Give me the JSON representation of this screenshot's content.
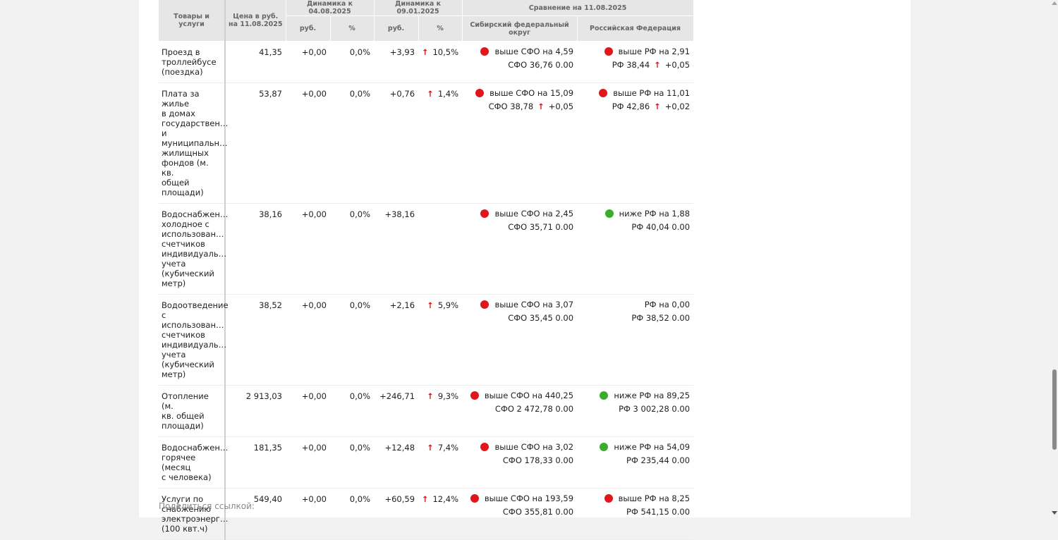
{
  "table": {
    "headers": {
      "goods": "Товары и услуги",
      "price": "Цена в руб. на 11.08.2025",
      "dyn1": "Динамика к 04.08.2025",
      "dyn2": "Динамика к 09.01.2025",
      "comparison": "Сравнение на 11.08.2025",
      "rub": "руб.",
      "pct": "%",
      "sfo": "Сибирский федеральный округ",
      "rf": "Российская Федерация"
    },
    "rows": [
      {
        "name": [
          "Проезд в",
          "троллейбусе",
          "(поездка)"
        ],
        "price": "41,35",
        "d1_rub": "+0,00",
        "d1_pct": "0,0%",
        "d2_rub": "+3,93",
        "d2_arrow": "↑",
        "d2_pct": "10,5%",
        "sfo_status": "red",
        "sfo_line1": "выше СФО на 4,59",
        "sfo_line2": "СФО 36,76 0.00",
        "rf_status": "red",
        "rf_line1": "выше РФ на 2,91",
        "rf_line2_main": "РФ 38,44",
        "rf_line2_arrow": "↑",
        "rf_line2_delta": "+0,05",
        "sfo_line2_main": "",
        "sfo_line2_arrow": "",
        "sfo_line2_delta": ""
      },
      {
        "name": [
          "Плата за жилье",
          "в домах",
          "государствен…",
          "и",
          "муниципальн…",
          "жилищных",
          "фондов (м. кв.",
          "общей",
          "площади)"
        ],
        "price": "53,87",
        "d1_rub": "+0,00",
        "d1_pct": "0,0%",
        "d2_rub": "+0,76",
        "d2_arrow": "↑",
        "d2_pct": "1,4%",
        "sfo_status": "red",
        "sfo_line1": "выше СФО на 15,09",
        "sfo_line2_main": "СФО 38,78",
        "sfo_line2_arrow": "↑",
        "sfo_line2_delta": "+0,05",
        "rf_status": "red",
        "rf_line1": "выше РФ на 11,01",
        "rf_line2_main": "РФ 42,86",
        "rf_line2_arrow": "↑",
        "rf_line2_delta": "+0,02"
      },
      {
        "name": [
          "Водоснабжен…",
          "холодное с",
          "использован…",
          "счетчиков",
          "индивидуаль…",
          "учета",
          "(кубический",
          "метр)"
        ],
        "price": "38,16",
        "d1_rub": "+0,00",
        "d1_pct": "0,0%",
        "d2_rub": "+38,16",
        "d2_arrow": "",
        "d2_pct": "",
        "sfo_status": "red",
        "sfo_line1": "выше СФО на 2,45",
        "sfo_line2": "СФО 35,71 0.00",
        "rf_status": "green",
        "rf_line1": "ниже РФ на 1,88",
        "rf_line2_main": "РФ 40,04 0.00",
        "rf_line2_arrow": "",
        "rf_line2_delta": ""
      },
      {
        "name": [
          "Водоотведение",
          "с",
          "использован…",
          "счетчиков",
          "индивидуаль…",
          "учета",
          "(кубический",
          "метр)"
        ],
        "price": "38,52",
        "d1_rub": "+0,00",
        "d1_pct": "0,0%",
        "d2_rub": "+2,16",
        "d2_arrow": "↑",
        "d2_pct": "5,9%",
        "sfo_status": "red",
        "sfo_line1": "выше СФО на 3,07",
        "sfo_line2": "СФО 35,45 0.00",
        "rf_status": "none",
        "rf_line1": "РФ на 0,00",
        "rf_line2_main": "РФ 38,52 0.00",
        "rf_line2_arrow": "",
        "rf_line2_delta": ""
      },
      {
        "name": [
          "Отопление (м.",
          "кв. общей",
          "площади)"
        ],
        "price": "2 913,03",
        "d1_rub": "+0,00",
        "d1_pct": "0,0%",
        "d2_rub": "+246,71",
        "d2_arrow": "↑",
        "d2_pct": "9,3%",
        "sfo_status": "red",
        "sfo_line1": "выше СФО на 440,25",
        "sfo_line2": "СФО 2 472,78 0.00",
        "rf_status": "green",
        "rf_line1": "ниже РФ на 89,25",
        "rf_line2_main": "РФ 3 002,28 0.00",
        "rf_line2_arrow": "",
        "rf_line2_delta": ""
      },
      {
        "name": [
          "Водоснабжен…",
          "горячее (месяц",
          "с человека)"
        ],
        "price": "181,35",
        "d1_rub": "+0,00",
        "d1_pct": "0,0%",
        "d2_rub": "+12,48",
        "d2_arrow": "↑",
        "d2_pct": "7,4%",
        "sfo_status": "red",
        "sfo_line1": "выше СФО на 3,02",
        "sfo_line2": "СФО 178,33 0.00",
        "rf_status": "green",
        "rf_line1": "ниже РФ на 54,09",
        "rf_line2_main": "РФ 235,44 0.00",
        "rf_line2_arrow": "",
        "rf_line2_delta": ""
      },
      {
        "name": [
          "Услуги по",
          "снабжению",
          "электроэнерг…",
          "(100 квт.ч)"
        ],
        "price": "549,40",
        "d1_rub": "+0,00",
        "d1_pct": "0,0%",
        "d2_rub": "+60,59",
        "d2_arrow": "↑",
        "d2_pct": "12,4%",
        "sfo_status": "red",
        "sfo_line1": "выше СФО на 193,59",
        "sfo_line2": "СФО 355,81 0.00",
        "rf_status": "red",
        "rf_line1": "выше РФ на 8,25",
        "rf_line2_main": "РФ 541,15 0.00",
        "rf_line2_arrow": "",
        "rf_line2_delta": ""
      }
    ]
  },
  "share": {
    "label": "Поделиться ссылкой:"
  },
  "colors": {
    "up_arrow": "#d9161c",
    "status_red": "#e0161d",
    "status_green": "#3aae2a"
  },
  "icons": {
    "arrow_up": "arrow-up-icon",
    "status_dot": "status-dot-icon"
  }
}
